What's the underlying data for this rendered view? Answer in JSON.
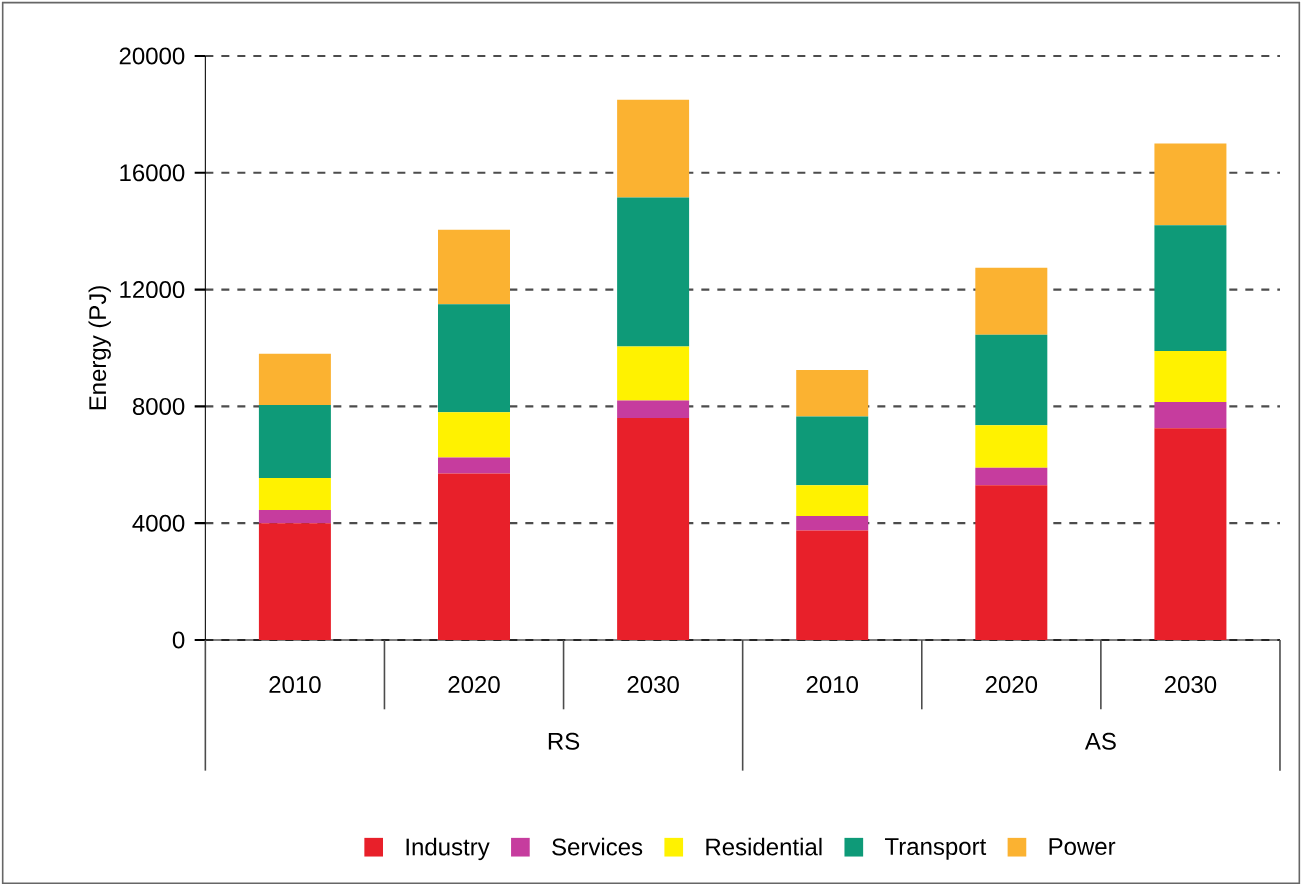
{
  "chart_data": {
    "type": "bar",
    "stacked": true,
    "ylabel": "Energy (PJ)",
    "categories": [
      "2010",
      "2020",
      "2030",
      "2010",
      "2020",
      "2030"
    ],
    "annotations": [
      "RS",
      "AS"
    ],
    "series": [
      {
        "name": "Industry",
        "color": "#e8202a",
        "values": [
          4000,
          5700,
          7600,
          3750,
          5300,
          7250
        ]
      },
      {
        "name": "Services",
        "color": "#c63c9e",
        "values": [
          450,
          550,
          600,
          500,
          600,
          900
        ]
      },
      {
        "name": "Residential",
        "color": "#fff200",
        "values": [
          1100,
          1550,
          1850,
          1050,
          1450,
          1750
        ]
      },
      {
        "name": "Transport",
        "color": "#0e9a78",
        "values": [
          2500,
          3700,
          5100,
          2350,
          3100,
          4300
        ]
      },
      {
        "name": "Power",
        "color": "#fbb231",
        "values": [
          1750,
          2550,
          3350,
          1600,
          2300,
          2800
        ]
      }
    ],
    "ylim": [
      0,
      20000
    ],
    "yticks": [
      0,
      4000,
      8000,
      12000,
      16000,
      20000
    ],
    "grid": "y",
    "legend": "bottom"
  }
}
